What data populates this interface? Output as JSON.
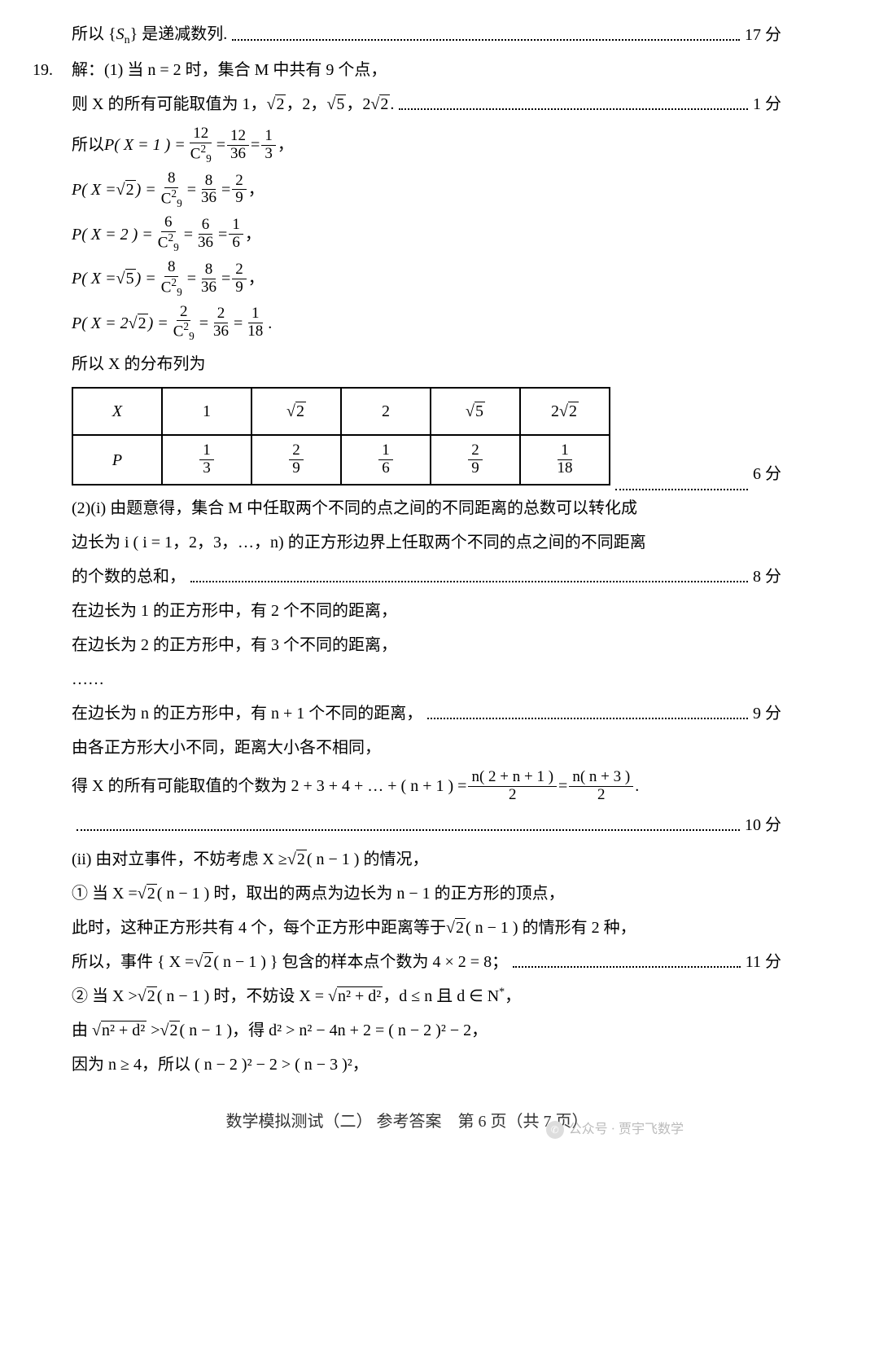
{
  "top": {
    "text_a": "所以 {",
    "sn": "S",
    "sub": "n",
    "text_b": "} 是递减数列.",
    "score": "17 分"
  },
  "q19_label": "19.",
  "l1": "解：(1) 当 n = 2 时，集合 M 中共有 9 个点，",
  "l2a": "则 X 的所有可能取值为 1，",
  "l2b": "，2，",
  "l2c": "，2",
  "l2d": ".",
  "l2_score": "1 分",
  "p_intro": "所以 ",
  "px1_a": "P( X = 1 ) =",
  "px1_n1": "12",
  "px1_d1": "C",
  "px1_d1sub": "9",
  "px1_d1sup": "2",
  "px1_n2": "12",
  "px1_d2": "36",
  "px1_n3": "1",
  "px1_d3": "3",
  "px_sqrt2_a": "P( X =",
  "px_sqrt2_b": " ) =",
  "px_sqrt2_n1": "8",
  "px_sqrt2_n2": "8",
  "px_sqrt2_d2": "36",
  "px_sqrt2_n3": "2",
  "px_sqrt2_d3": "9",
  "px2_a": "P( X = 2 ) =",
  "px2_n1": "6",
  "px2_n2": "6",
  "px2_d2": "36",
  "px2_n3": "1",
  "px2_d3": "6",
  "px5_a": "P( X =",
  "px5_b": " ) =",
  "px5_n1": "8",
  "px5_n2": "8",
  "px5_d2": "36",
  "px5_n3": "2",
  "px5_d3": "9",
  "px22_a": "P( X = 2",
  "px22_b": " ) =",
  "px22_n1": "2",
  "px22_n2": "2",
  "px22_d2": "36",
  "px22_n3": "1",
  "px22_d3": "18",
  "dist_intro": "所以 X 的分布列为",
  "tbl": {
    "h0": "X",
    "h1": "1",
    "h2": "2",
    "h3": "2",
    "p0": "P",
    "sqrt2": "2",
    "sqrt5": "5",
    "f1n": "1",
    "f1d": "3",
    "f2n": "2",
    "f2d": "9",
    "f3n": "1",
    "f3d": "6",
    "f4n": "2",
    "f4d": "9",
    "f5n": "1",
    "f5d": "18"
  },
  "tbl_score": "6 分",
  "s2i_a": "(2)(i) 由题意得，集合 M 中任取两个不同的点之间的不同距离的总数可以转化成",
  "s2i_b": "边长为 i ( i = 1，2，3，…，n) 的正方形边界上任取两个不同的点之间的不同距离",
  "s2i_c": "的个数的总和，",
  "s2i_score": "8 分",
  "sq1": "在边长为 1 的正方形中，有 2 个不同的距离，",
  "sq2": "在边长为 2 的正方形中，有 3 个不同的距离，",
  "dots6": "……",
  "sqn": "在边长为 n 的正方形中，有 n + 1 个不同的距离，",
  "sqn_score": "9 分",
  "diff": "由各正方形大小不同，距离大小各不相同，",
  "sum_a": "得 X 的所有可能取值的个数为 2 + 3 + 4 + … + ( n + 1 ) =",
  "sum_f1n": "n( 2 + n + 1 )",
  "sum_f1d": "2",
  "sum_eq": "=",
  "sum_f2n": "n( n + 3 )",
  "sum_f2d": "2",
  "sum_dot": ".",
  "sum_score": "10 分",
  "ii_a": "(ii) 由对立事件，不妨考虑 X ≥",
  "ii_b": "( n − 1 ) 的情况，",
  "c1_a": "① 当 X =",
  "c1_b": "( n − 1 ) 时，取出的两点为边长为 n − 1 的正方形的顶点，",
  "c1_2a": "此时，这种正方形共有 4 个，每个正方形中距离等于",
  "c1_2b": "( n − 1 ) 的情形有 2 种，",
  "c1_3a": "所以，事件 { X =",
  "c1_3b": "( n − 1 ) } 包含的样本点个数为 4 × 2 = 8；",
  "c1_score": "11 分",
  "c2_a": "② 当 X >",
  "c2_b": "( n − 1 ) 时，不妨设 X =",
  "c2_c": "，d ≤ n 且 d ∈ N",
  "c2_star": "*",
  "c2_d": "，",
  "nd": "n² + d²",
  "c3_a": "由 ",
  "c3_b": " >",
  "c3_c": "( n − 1 )，得 d² > n² − 4n + 2 = ( n − 2 )² − 2，",
  "c4": "因为 n ≥ 4，所以 ( n − 2 )² − 2 > ( n − 3 )²，",
  "footer": "数学模拟测试（二） 参考答案　第 6 页（共 7 页）",
  "wm": "公众号 · 贾宇飞数学"
}
